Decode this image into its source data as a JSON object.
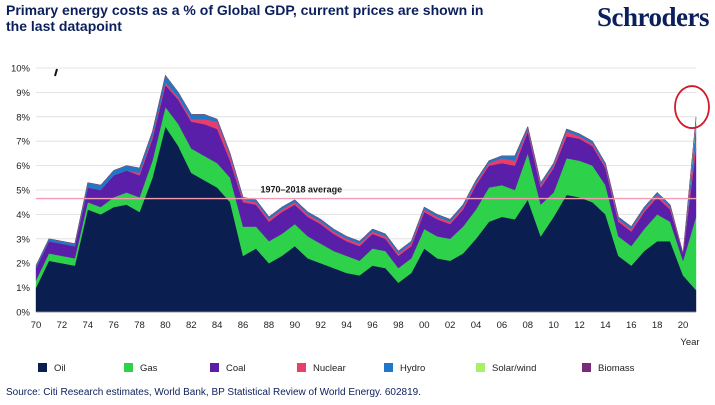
{
  "page": {
    "title": "Primary energy costs as a % of Global GDP, current prices are shown in the last datapoint",
    "brand": "Schroders",
    "source": "Citi Research estimates, World Bank, BP Statistical Review of World Energy. 602819."
  },
  "chart_data": {
    "type": "area",
    "stacked": true,
    "title": "Primary energy costs as a % of Global GDP, current prices are shown in the last datapoint",
    "xlabel": "Year",
    "ylabel": "",
    "ylim": [
      0,
      10
    ],
    "yticks": [
      "0%",
      "1%",
      "2%",
      "3%",
      "4%",
      "5%",
      "6%",
      "7%",
      "8%",
      "9%",
      "10%"
    ],
    "xticks": [
      "70",
      "72",
      "74",
      "76",
      "78",
      "80",
      "82",
      "84",
      "86",
      "88",
      "90",
      "92",
      "94",
      "96",
      "98",
      "00",
      "02",
      "04",
      "06",
      "08",
      "10",
      "12",
      "14",
      "16",
      "18",
      "20"
    ],
    "x": [
      1970,
      1971,
      1972,
      1973,
      1974,
      1975,
      1976,
      1977,
      1978,
      1979,
      1980,
      1981,
      1982,
      1983,
      1984,
      1985,
      1986,
      1987,
      1988,
      1989,
      1990,
      1991,
      1992,
      1993,
      1994,
      1995,
      1996,
      1997,
      1998,
      1999,
      2000,
      2001,
      2002,
      2003,
      2004,
      2005,
      2006,
      2007,
      2008,
      2009,
      2010,
      2011,
      2012,
      2013,
      2014,
      2015,
      2016,
      2017,
      2018,
      2019,
      2020,
      2021
    ],
    "series": [
      {
        "name": "Oil",
        "color": "#0a1f4f",
        "values": [
          1.0,
          2.1,
          2.0,
          1.9,
          4.2,
          4.0,
          4.3,
          4.4,
          4.1,
          5.5,
          7.6,
          6.8,
          5.7,
          5.4,
          5.1,
          4.5,
          2.3,
          2.6,
          2.0,
          2.3,
          2.7,
          2.2,
          2.0,
          1.8,
          1.6,
          1.5,
          1.9,
          1.8,
          1.2,
          1.6,
          2.6,
          2.2,
          2.1,
          2.4,
          3.0,
          3.7,
          3.9,
          3.8,
          4.6,
          3.1,
          3.9,
          4.8,
          4.7,
          4.5,
          4.0,
          2.3,
          1.9,
          2.5,
          2.9,
          2.9,
          1.5,
          0.9
        ]
      },
      {
        "name": "Gas",
        "color": "#2ed24a",
        "values": [
          0.3,
          0.3,
          0.3,
          0.3,
          0.3,
          0.3,
          0.4,
          0.5,
          0.6,
          0.7,
          0.8,
          0.9,
          1.0,
          1.0,
          1.0,
          1.0,
          1.2,
          0.9,
          0.9,
          0.9,
          0.9,
          0.9,
          0.8,
          0.7,
          0.7,
          0.6,
          0.7,
          0.7,
          0.6,
          0.6,
          0.8,
          0.9,
          0.9,
          1.1,
          1.2,
          1.4,
          1.3,
          1.2,
          1.9,
          1.3,
          1.0,
          1.5,
          1.5,
          1.5,
          1.2,
          0.8,
          0.8,
          0.9,
          1.1,
          0.8,
          0.6,
          3.0
        ]
      },
      {
        "name": "Coal",
        "color": "#5a1fa8",
        "values": [
          0.5,
          0.5,
          0.5,
          0.5,
          0.6,
          0.7,
          0.9,
          0.9,
          0.9,
          0.9,
          0.9,
          1.0,
          1.1,
          1.3,
          1.4,
          0.7,
          1.0,
          0.9,
          0.8,
          0.9,
          0.8,
          0.8,
          0.8,
          0.7,
          0.6,
          0.6,
          0.6,
          0.5,
          0.5,
          0.5,
          0.7,
          0.7,
          0.6,
          0.7,
          1.0,
          0.9,
          0.9,
          1.0,
          0.9,
          0.7,
          1.0,
          0.9,
          0.9,
          0.8,
          0.7,
          0.6,
          0.6,
          0.7,
          0.7,
          0.5,
          0.3,
          2.8
        ]
      },
      {
        "name": "Nuclear",
        "color": "#e83e6c",
        "values": [
          0.0,
          0.0,
          0.0,
          0.0,
          0.0,
          0.0,
          0.0,
          0.0,
          0.1,
          0.1,
          0.1,
          0.1,
          0.1,
          0.2,
          0.3,
          0.2,
          0.1,
          0.1,
          0.1,
          0.1,
          0.1,
          0.1,
          0.1,
          0.1,
          0.1,
          0.1,
          0.1,
          0.1,
          0.1,
          0.1,
          0.1,
          0.1,
          0.1,
          0.1,
          0.1,
          0.1,
          0.2,
          0.2,
          0.1,
          0.1,
          0.1,
          0.2,
          0.1,
          0.1,
          0.1,
          0.1,
          0.1,
          0.1,
          0.1,
          0.1,
          0.0,
          0.4
        ]
      },
      {
        "name": "Hydro",
        "color": "#1e78c8",
        "values": [
          0.1,
          0.1,
          0.1,
          0.1,
          0.2,
          0.2,
          0.2,
          0.2,
          0.2,
          0.2,
          0.3,
          0.2,
          0.2,
          0.2,
          0.1,
          0.1,
          0.1,
          0.1,
          0.1,
          0.1,
          0.1,
          0.1,
          0.1,
          0.1,
          0.1,
          0.1,
          0.1,
          0.1,
          0.1,
          0.1,
          0.1,
          0.1,
          0.1,
          0.1,
          0.1,
          0.1,
          0.1,
          0.2,
          0.1,
          0.1,
          0.1,
          0.1,
          0.1,
          0.1,
          0.1,
          0.1,
          0.1,
          0.1,
          0.1,
          0.1,
          0.0,
          0.6
        ]
      },
      {
        "name": "Solar/wind",
        "color": "#a6f06a",
        "values": [
          0.0,
          0.0,
          0.0,
          0.0,
          0.0,
          0.0,
          0.0,
          0.0,
          0.0,
          0.0,
          0.0,
          0.0,
          0.0,
          0.0,
          0.0,
          0.0,
          0.0,
          0.0,
          0.0,
          0.0,
          0.0,
          0.0,
          0.0,
          0.0,
          0.0,
          0.0,
          0.0,
          0.0,
          0.0,
          0.0,
          0.0,
          0.0,
          0.0,
          0.0,
          0.0,
          0.0,
          0.0,
          0.0,
          0.0,
          0.0,
          0.0,
          0.0,
          0.0,
          0.0,
          0.0,
          0.0,
          0.0,
          0.0,
          0.0,
          0.0,
          0.0,
          0.2
        ]
      },
      {
        "name": "Biomass",
        "color": "#7a2a7a",
        "values": [
          0.0,
          0.0,
          0.0,
          0.0,
          0.0,
          0.0,
          0.0,
          0.0,
          0.0,
          0.0,
          0.0,
          0.0,
          0.0,
          0.0,
          0.0,
          0.0,
          0.0,
          0.0,
          0.0,
          0.0,
          0.0,
          0.0,
          0.0,
          0.0,
          0.0,
          0.0,
          0.0,
          0.0,
          0.0,
          0.0,
          0.0,
          0.0,
          0.0,
          0.0,
          0.0,
          0.0,
          0.0,
          0.0,
          0.0,
          0.0,
          0.0,
          0.0,
          0.0,
          0.0,
          0.0,
          0.0,
          0.0,
          0.0,
          0.0,
          0.0,
          0.0,
          0.1
        ]
      }
    ],
    "average_line": {
      "label": "1970–2018 average",
      "value": 4.65,
      "color": "#f39cb4"
    },
    "highlight": {
      "x": 2021,
      "color": "#d11a2a"
    },
    "legend_position": "bottom",
    "grid": true
  }
}
